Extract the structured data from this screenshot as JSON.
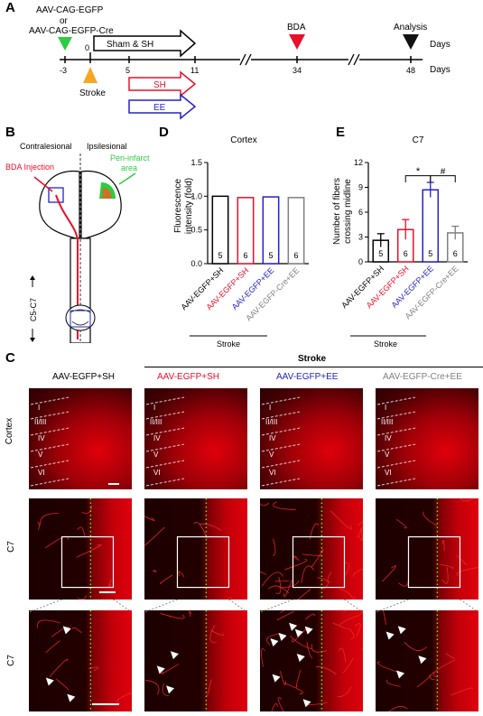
{
  "panels": {
    "a": "A",
    "b": "B",
    "c": "C",
    "d": "D",
    "e": "E"
  },
  "timeline": {
    "virus_line1": "AAV-CAG-EGFP",
    "virus_or": "or",
    "virus_line2": "AAV-CAG-EGFP-Cre",
    "stroke": "Stroke",
    "bda": "BDA",
    "analysis": "Analysis",
    "days": "Days",
    "sham_sh": "Sham & SH",
    "sh": "SH",
    "ee": "EE",
    "ticks": [
      "-3",
      "0",
      "5",
      "11",
      "34",
      "48"
    ],
    "colors": {
      "virus": "#2ecc40",
      "stroke": "#f5a623",
      "bda": "#e8102a",
      "analysis": "#111111",
      "sh": "#e8102a",
      "ee": "#2323c8"
    }
  },
  "schematic": {
    "contralesional": "Contralesional",
    "ipsilesional": "Ipsilesional",
    "bda_injection": "BDA Injection",
    "peri_infarct_1": "Peri-infarct",
    "peri_infarct_2": "area",
    "level": "C5-C7"
  },
  "groups": {
    "g1": "AAV-EGFP+SH",
    "g2": "AAV-EGFP+SH",
    "g3": "AAV-EGFP+EE",
    "g4": "AAV-EGFP-Cre+EE",
    "stroke": "Stroke",
    "colors": [
      "#000000",
      "#e8102a",
      "#2323c8",
      "#808080"
    ]
  },
  "chart_data": [
    {
      "type": "bar",
      "title": "Cortex",
      "ylabel": "Fluorescence intensity (fold)",
      "categories": [
        "AAV-EGFP+SH",
        "AAV-EGFP+SH",
        "AAV-EGFP+EE",
        "AAV-EGFP-Cre+EE"
      ],
      "values": [
        1.0,
        0.98,
        0.99,
        0.98
      ],
      "n": [
        "5",
        "6",
        "5",
        "6"
      ],
      "ylim": [
        0,
        1.5
      ],
      "yticks": [
        "0.0",
        "0.5",
        "1.0",
        "1.5"
      ]
    },
    {
      "type": "bar",
      "title": "C7",
      "ylabel": "Number of fibers crossing midline",
      "categories": [
        "AAV-EGFP+SH",
        "AAV-EGFP+SH",
        "AAV-EGFP+EE",
        "AAV-EGFP-Cre+EE"
      ],
      "values": [
        2.6,
        3.9,
        8.7,
        3.5
      ],
      "errors": [
        0.8,
        1.2,
        0.9,
        0.8
      ],
      "n": [
        "5",
        "6",
        "5",
        "6"
      ],
      "ylim": [
        0,
        12
      ],
      "yticks": [
        "0",
        "3",
        "6",
        "9",
        "12"
      ],
      "significance": [
        "*",
        "#"
      ]
    }
  ],
  "micrographs": {
    "row_cortex": "Cortex",
    "row_c7a": "C7",
    "row_c7b": "C7",
    "layers": [
      "I",
      "II/III",
      "IV",
      "V",
      "VI"
    ],
    "stroke_header": "Stroke"
  }
}
